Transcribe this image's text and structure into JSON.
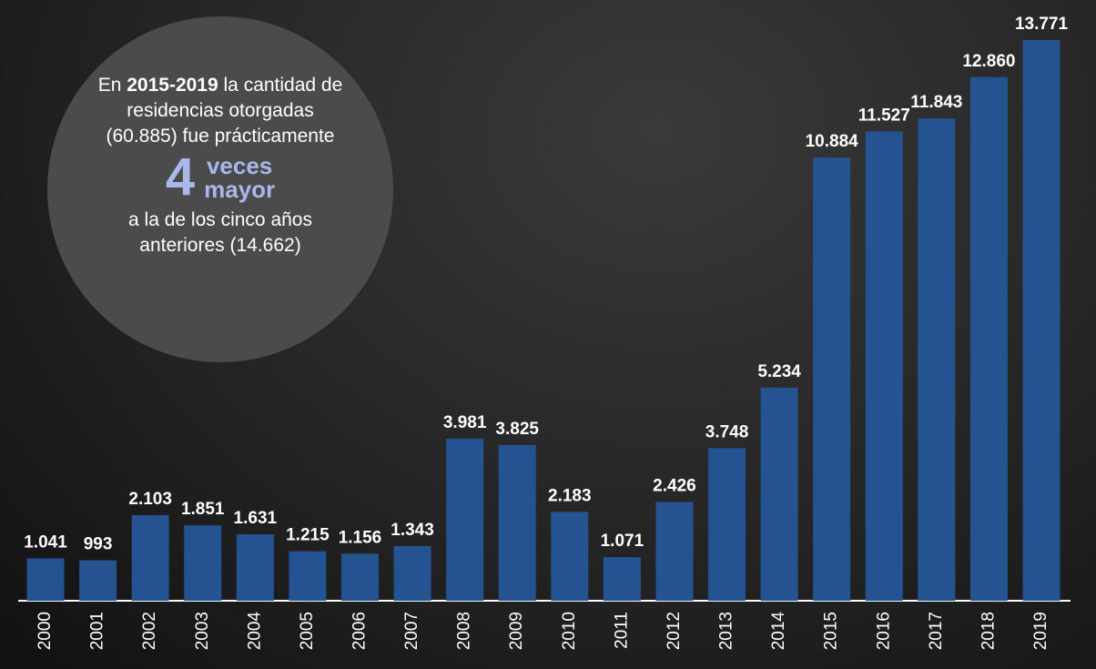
{
  "chart_data": {
    "type": "bar",
    "categories": [
      "2000",
      "2001",
      "2002",
      "2003",
      "2004",
      "2005",
      "2006",
      "2007",
      "2008",
      "2009",
      "2010",
      "2011",
      "2012",
      "2013",
      "2014",
      "2015",
      "2016",
      "2017",
      "2018",
      "2019"
    ],
    "values": [
      1041,
      993,
      2103,
      1851,
      1631,
      1215,
      1156,
      1343,
      3981,
      3825,
      2183,
      1071,
      2426,
      3748,
      5234,
      10884,
      11527,
      11843,
      12860,
      13771
    ],
    "value_labels": [
      "1.041",
      "993",
      "2.103",
      "1.851",
      "1.631",
      "1.215",
      "1.156",
      "1.343",
      "3.981",
      "3.825",
      "2.183",
      "1.071",
      "2.426",
      "3.748",
      "5.234",
      "10.884",
      "11.527",
      "11.843",
      "12.860",
      "13.771"
    ],
    "color": "#255391",
    "annotation": {
      "intro": "En",
      "period": "2015-2019",
      "text1": "la cantidad de residencias otorgadas (60.885) fue prácticamente",
      "factor": "4",
      "word1": "veces",
      "word2": "mayor",
      "text2": "a la de los cinco años anteriores (14.662)"
    }
  }
}
